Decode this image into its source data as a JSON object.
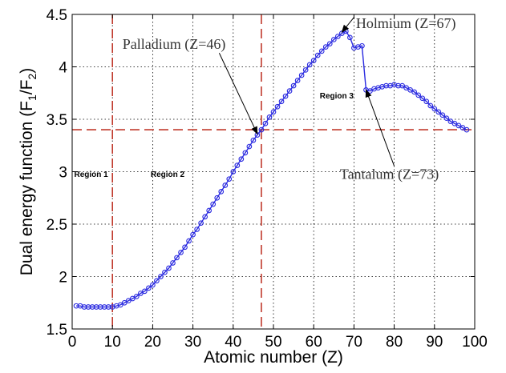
{
  "chart_data": {
    "type": "line",
    "title": "",
    "xlabel": "Atomic number (Z)",
    "ylabel_parts": [
      "Dual energy function (F",
      "1",
      "/F",
      "2",
      ")"
    ],
    "xlim": [
      0,
      100
    ],
    "ylim": [
      1.5,
      4.5
    ],
    "xticks": [
      0,
      10,
      20,
      30,
      40,
      50,
      60,
      70,
      80,
      90,
      100
    ],
    "xtick_labels": [
      "0",
      "10",
      "20",
      "30",
      "40",
      "50",
      "60",
      "70",
      "80",
      "90",
      "100"
    ],
    "yticks": [
      1.5,
      2,
      2.5,
      3,
      3.5,
      4,
      4.5
    ],
    "ytick_labels": [
      "1.5",
      "2",
      "2.5",
      "3",
      "3.5",
      "4",
      "4.5"
    ],
    "grid": true,
    "series": [
      {
        "color": "#2a2ae0",
        "marker": "circle-open",
        "x": [
          1,
          2,
          3,
          4,
          5,
          6,
          7,
          8,
          9,
          10,
          11,
          12,
          13,
          14,
          15,
          16,
          17,
          18,
          19,
          20,
          21,
          22,
          23,
          24,
          25,
          26,
          27,
          28,
          29,
          30,
          31,
          32,
          33,
          34,
          35,
          36,
          37,
          38,
          39,
          40,
          41,
          42,
          43,
          44,
          45,
          46,
          47,
          48,
          49,
          50,
          51,
          52,
          53,
          54,
          55,
          56,
          57,
          58,
          59,
          60,
          61,
          62,
          63,
          64,
          65,
          66,
          67,
          68,
          69,
          70,
          71,
          72,
          73,
          74,
          75,
          76,
          77,
          78,
          79,
          80,
          81,
          82,
          83,
          84,
          85,
          86,
          87,
          88,
          89,
          90,
          91,
          92,
          93,
          94,
          95,
          96,
          97,
          98
        ],
        "y": [
          1.72,
          1.72,
          1.71,
          1.71,
          1.71,
          1.71,
          1.71,
          1.71,
          1.71,
          1.71,
          1.72,
          1.73,
          1.75,
          1.77,
          1.79,
          1.81,
          1.84,
          1.86,
          1.89,
          1.92,
          1.96,
          2.0,
          2.04,
          2.08,
          2.13,
          2.18,
          2.23,
          2.28,
          2.34,
          2.4,
          2.45,
          2.51,
          2.57,
          2.63,
          2.69,
          2.75,
          2.81,
          2.87,
          2.93,
          3.0,
          3.06,
          3.12,
          3.18,
          3.24,
          3.3,
          3.35,
          3.4,
          3.46,
          3.52,
          3.57,
          3.62,
          3.67,
          3.72,
          3.77,
          3.82,
          3.87,
          3.92,
          3.97,
          4.02,
          4.06,
          4.11,
          4.15,
          4.19,
          4.22,
          4.26,
          4.29,
          4.32,
          4.34,
          4.28,
          4.18,
          4.19,
          4.2,
          3.78,
          3.77,
          3.79,
          3.8,
          3.81,
          3.82,
          3.82,
          3.83,
          3.82,
          3.82,
          3.8,
          3.78,
          3.76,
          3.73,
          3.7,
          3.67,
          3.63,
          3.6,
          3.57,
          3.54,
          3.51,
          3.48,
          3.46,
          3.44,
          3.42,
          3.4
        ]
      }
    ],
    "reference_lines": [
      {
        "orientation": "vertical",
        "x": 10,
        "color": "#c0392b",
        "style": "dashed"
      },
      {
        "orientation": "vertical",
        "x": 47,
        "color": "#c0392b",
        "style": "dashed"
      },
      {
        "orientation": "horizontal",
        "y": 3.4,
        "color": "#c0392b",
        "style": "dashed"
      }
    ],
    "annotations": [
      {
        "text": "Palladium (Z=46)",
        "at": [
          12.5,
          4.17
        ],
        "arrow_to": [
          46,
          3.36
        ]
      },
      {
        "text": "Holmium (Z=67)",
        "at": [
          70.5,
          4.37
        ],
        "arrow_to": [
          67,
          4.33
        ],
        "overline": true
      },
      {
        "text": "Tantalum (Z=73)",
        "at": [
          66.5,
          2.93
        ],
        "arrow_to": [
          73,
          3.78
        ]
      }
    ],
    "regions": [
      {
        "text": "Region 1",
        "at": [
          0.5,
          2.95
        ]
      },
      {
        "text": "Region 2",
        "at": [
          19.5,
          2.95
        ]
      },
      {
        "text": "Region 3",
        "at": [
          61.5,
          3.7
        ]
      }
    ]
  }
}
